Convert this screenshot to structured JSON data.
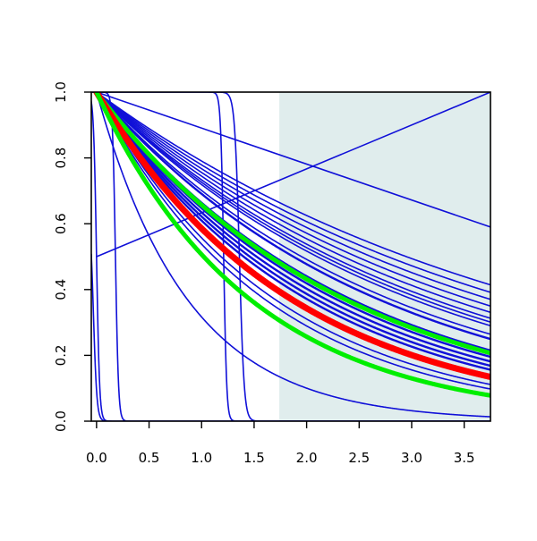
{
  "chart_data": {
    "type": "line",
    "title": "",
    "xlabel": "",
    "ylabel": "",
    "xlim": [
      -0.05,
      3.75
    ],
    "ylim": [
      0,
      1
    ],
    "grid": false,
    "legend": "none",
    "x_ticks": [
      "0.0",
      "0.5",
      "1.0",
      "1.5",
      "2.0",
      "2.5",
      "3.0",
      "3.5"
    ],
    "y_ticks": [
      "0.0",
      "0.2",
      "0.4",
      "0.6",
      "0.8",
      "1.0"
    ],
    "shaded_region": {
      "x_from": 1.74,
      "x_to": 3.75,
      "color": "#e0eded"
    },
    "colors": {
      "blue": "#1010d8",
      "red": "#ff0000",
      "green": "#00ee00",
      "axis": "#000000"
    },
    "series": [
      {
        "color": "blue",
        "width": 1.6,
        "x": [
          0,
          3.75
        ],
        "y": [
          0.5,
          1.0
        ]
      },
      {
        "color": "blue",
        "width": 1.6,
        "x": [
          0,
          3.75
        ],
        "y": [
          1.0,
          0.59
        ]
      },
      {
        "color": "blue",
        "width": 1.6,
        "kind": "exp",
        "rate": 1.15
      },
      {
        "color": "blue",
        "width": 1.6,
        "kind": "exp",
        "rate": 0.235
      },
      {
        "color": "blue",
        "width": 1.6,
        "kind": "exp",
        "rate": 0.25
      },
      {
        "color": "blue",
        "width": 1.6,
        "kind": "exp",
        "rate": 0.265
      },
      {
        "color": "blue",
        "width": 1.6,
        "kind": "exp",
        "rate": 0.28
      },
      {
        "color": "blue",
        "width": 1.6,
        "kind": "exp",
        "rate": 0.295
      },
      {
        "color": "blue",
        "width": 1.6,
        "kind": "exp",
        "rate": 0.31
      },
      {
        "color": "blue",
        "width": 1.6,
        "kind": "exp",
        "rate": 0.32
      },
      {
        "color": "blue",
        "width": 1.6,
        "kind": "exp",
        "rate": 0.33
      },
      {
        "color": "blue",
        "width": 1.6,
        "kind": "exp",
        "rate": 0.355
      },
      {
        "color": "blue",
        "width": 2.4,
        "kind": "exp",
        "rate": 0.37
      },
      {
        "color": "blue",
        "width": 2.4,
        "kind": "exp",
        "rate": 0.41
      },
      {
        "color": "blue",
        "width": 2.4,
        "kind": "exp",
        "rate": 0.435
      },
      {
        "color": "blue",
        "width": 2.4,
        "kind": "exp",
        "rate": 0.455
      },
      {
        "color": "blue",
        "width": 2.4,
        "kind": "exp",
        "rate": 0.475
      },
      {
        "color": "blue",
        "width": 2.4,
        "kind": "exp",
        "rate": 0.495
      },
      {
        "color": "blue",
        "width": 1.6,
        "kind": "exp",
        "rate": 0.545
      },
      {
        "color": "blue",
        "width": 1.6,
        "kind": "exp",
        "rate": 0.585
      },
      {
        "color": "blue",
        "width": 1.6,
        "kind": "exp",
        "rate": 0.62
      },
      {
        "color": "blue",
        "width": 1.6,
        "kind": "step",
        "x0": -0.03,
        "k": 60,
        "start": 0.66
      },
      {
        "color": "blue",
        "width": 1.6,
        "kind": "step",
        "x0": 0.0,
        "k": 70
      },
      {
        "color": "blue",
        "width": 1.6,
        "kind": "step",
        "x0": 0.18,
        "k": 70
      },
      {
        "color": "blue",
        "width": 1.6,
        "kind": "step",
        "x0": 1.21,
        "k": 70
      },
      {
        "color": "blue",
        "width": 1.6,
        "kind": "step",
        "x0": 1.36,
        "k": 45
      },
      {
        "color": "green",
        "width": 5,
        "kind": "exp",
        "rate": 0.42
      },
      {
        "color": "red",
        "width": 7,
        "kind": "exp",
        "rate": 0.535
      },
      {
        "color": "green",
        "width": 5,
        "kind": "exp",
        "rate": 0.68
      }
    ]
  }
}
